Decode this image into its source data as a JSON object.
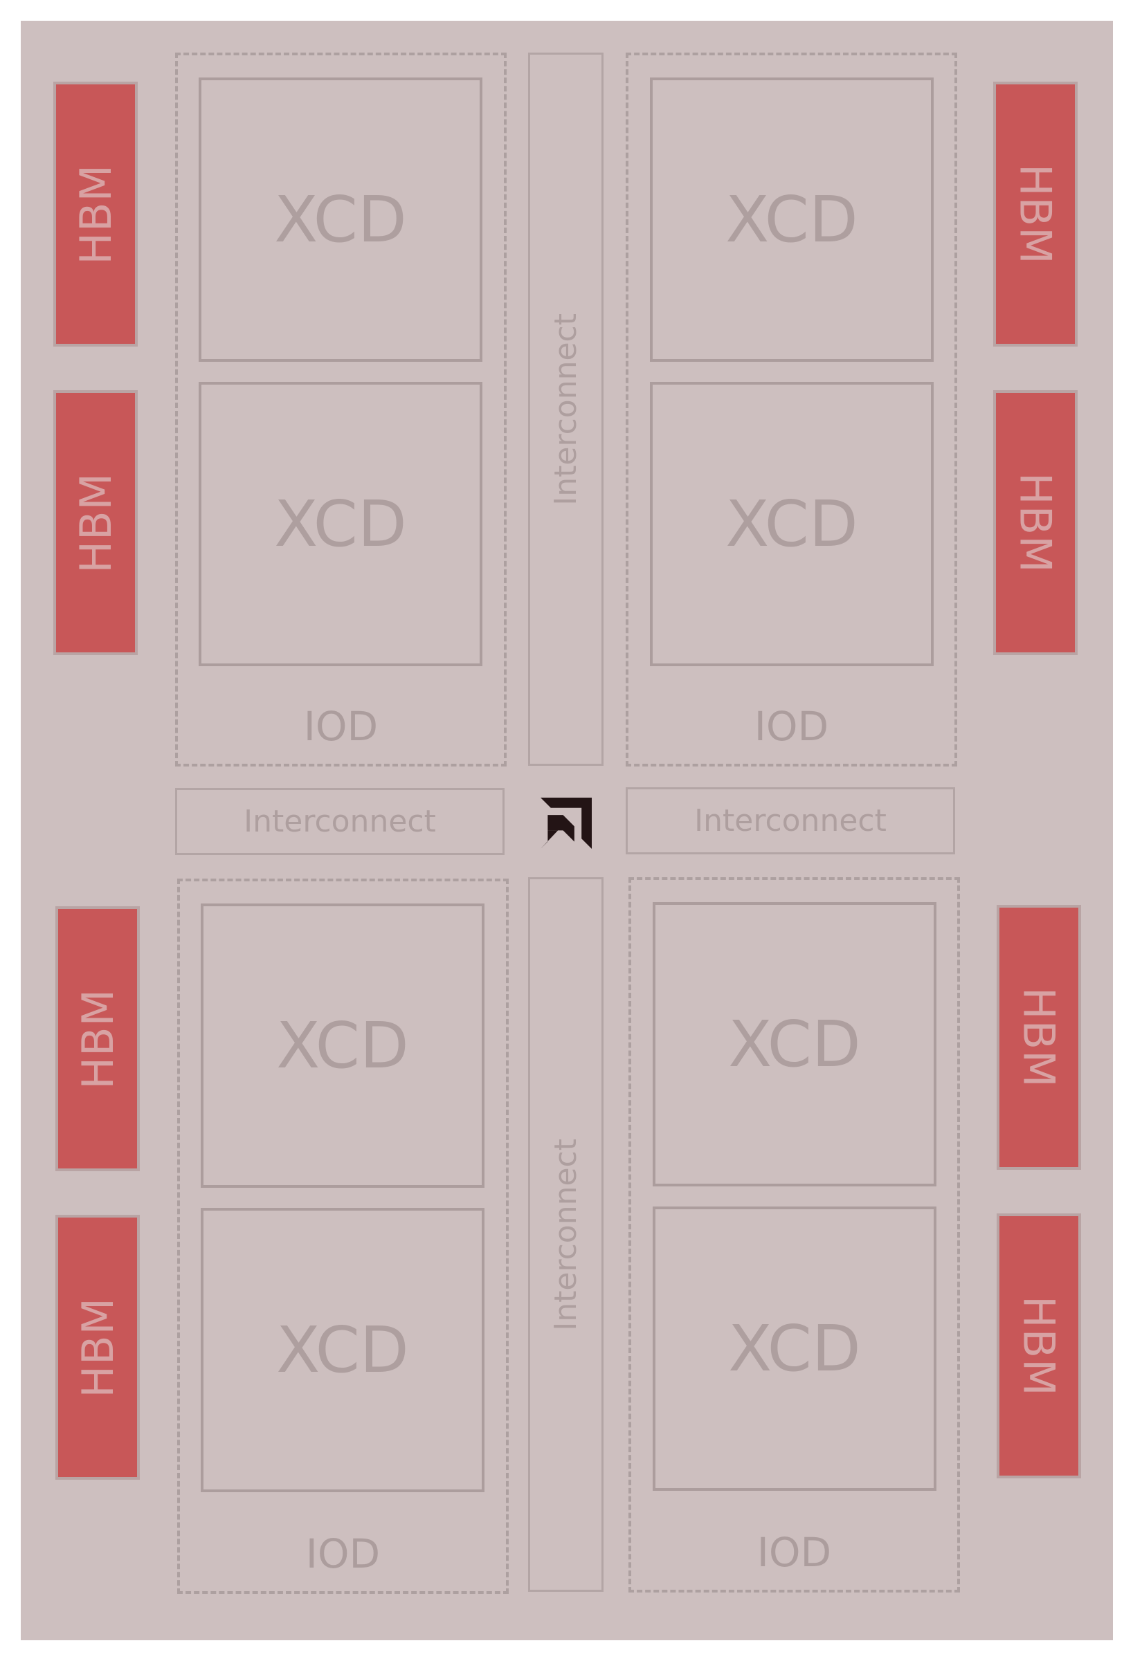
{
  "diagram": {
    "hbm_label": "HBM",
    "xcd_label": "XCD",
    "iod_label": "IOD",
    "interconnect_label": "Interconnect",
    "logo": "amd-arrow-logo",
    "colors": {
      "package": "#cdbfbf",
      "hbm_fill": "#c85758",
      "hbm_text": "#d8a2a3",
      "outline": "#ac9d9d",
      "logo": "#231415"
    },
    "quadrants": [
      {
        "position": "top-left",
        "xcd_count": 2,
        "hbm_count": 2
      },
      {
        "position": "top-right",
        "xcd_count": 2,
        "hbm_count": 2
      },
      {
        "position": "bottom-left",
        "xcd_count": 2,
        "hbm_count": 2
      },
      {
        "position": "bottom-right",
        "xcd_count": 2,
        "hbm_count": 2
      }
    ]
  }
}
